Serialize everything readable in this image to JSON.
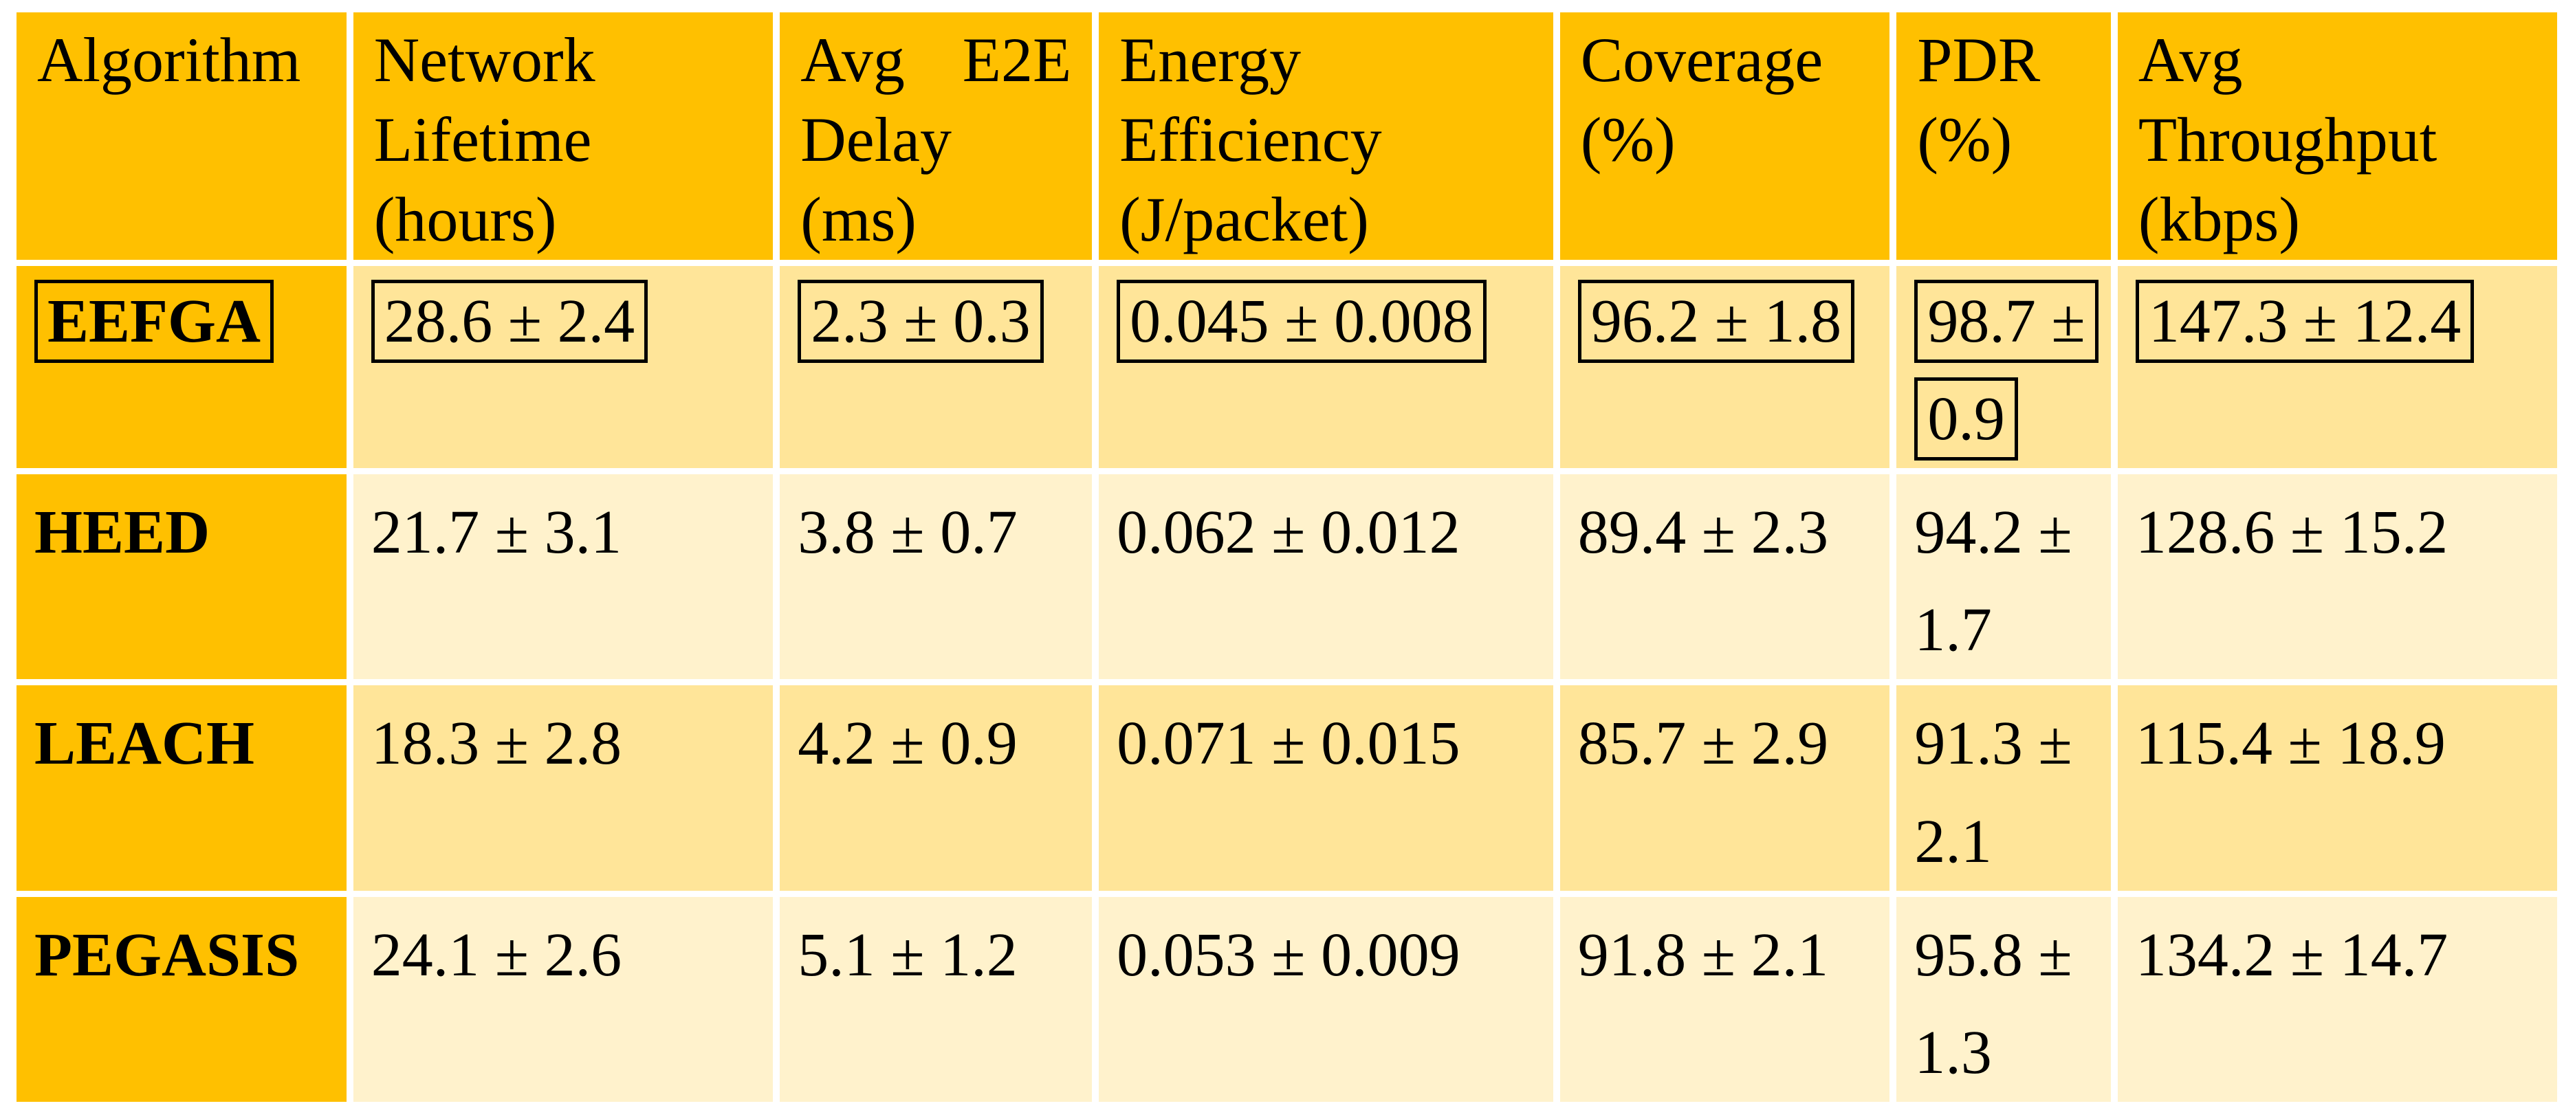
{
  "table": {
    "title_hint": "Algorithm performance comparison table",
    "columns": [
      {
        "label": "Algorithm"
      },
      {
        "label": "Network Lifetime (hours)"
      },
      {
        "label": "Avg E2E Delay (ms)"
      },
      {
        "label": "Energy Efficiency (J/packet)"
      },
      {
        "label": "Coverage (%)"
      },
      {
        "label": "PDR (%)"
      },
      {
        "label": "Avg Throughput (kbps)"
      }
    ],
    "rows": [
      {
        "algorithm": "EEFGA",
        "highlighted": true,
        "network_lifetime": "28.6 ± 2.4",
        "avg_e2e_delay": "2.3 ± 0.3",
        "energy_efficiency": "0.045 ± 0.008",
        "coverage": "96.2 ± 1.8",
        "pdr": "98.7 ± 0.9",
        "avg_throughput": "147.3 ± 12.4"
      },
      {
        "algorithm": "HEED",
        "highlighted": false,
        "network_lifetime": "21.7 ± 3.1",
        "avg_e2e_delay": "3.8 ± 0.7",
        "energy_efficiency": "0.062 ± 0.012",
        "coverage": "89.4 ± 2.3",
        "pdr": "94.2 ± 1.7",
        "avg_throughput": "128.6 ± 15.2"
      },
      {
        "algorithm": "LEACH",
        "highlighted": false,
        "network_lifetime": "18.3 ± 2.8",
        "avg_e2e_delay": "4.2 ± 0.9",
        "energy_efficiency": "0.071 ± 0.015",
        "coverage": "85.7 ± 2.9",
        "pdr": "91.3 ± 2.1",
        "avg_throughput": "115.4 ± 18.9"
      },
      {
        "algorithm": "PEGASIS",
        "highlighted": false,
        "network_lifetime": "24.1 ± 2.6",
        "avg_e2e_delay": "5.1 ± 1.2",
        "energy_efficiency": "0.053 ± 0.009",
        "coverage": "91.8 ± 2.1",
        "pdr": "95.8 ± 1.3",
        "avg_throughput": "134.2 ± 14.7"
      }
    ]
  },
  "colors": {
    "header_fill": "#FFC000",
    "row_fill_medium": "#FFE599",
    "row_fill_light": "#FFF2CC",
    "grid_gap": "#FFFFFF",
    "text": "#000000",
    "highlight_box_border": "#000000"
  }
}
